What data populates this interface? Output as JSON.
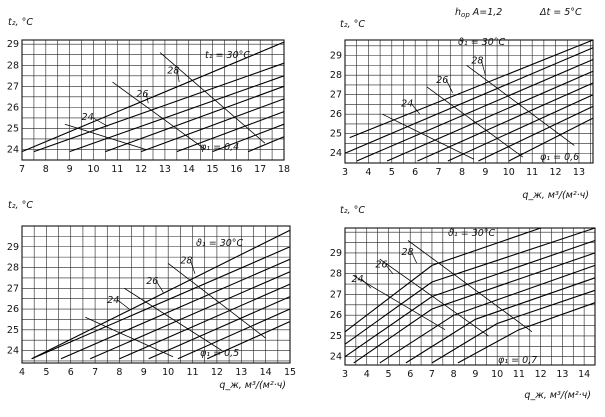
{
  "header": {
    "h_label": "h",
    "h_sub": "ор",
    "h_value": "A=1,2",
    "dt_label": "Δt = 5°C"
  },
  "chart_data": [
    {
      "id": "p1",
      "type": "line",
      "xlim": [
        7,
        18
      ],
      "ylim": [
        23.5,
        29.2
      ],
      "xticks": [
        "7",
        "8",
        "9",
        "10",
        "11",
        "12",
        "13",
        "14",
        "15",
        "16",
        "17",
        "18"
      ],
      "yticks": [
        "24",
        "25",
        "26",
        "27",
        "28",
        "29"
      ],
      "ylabel": "t₂, °C",
      "xlabel": "",
      "grid": true,
      "t_line_label": "t₁ = 30°C",
      "phi_label": "φ₁ = 0,4",
      "t1_lines": [
        {
          "name": "24",
          "points": [
            [
              7.5,
              23.9
            ],
            [
              18,
              28.1
            ]
          ]
        },
        {
          "name": "26",
          "points": [
            [
              9.0,
              23.9
            ],
            [
              18,
              27.5
            ]
          ]
        },
        {
          "name": "28",
          "points": [
            [
              10.5,
              23.9
            ],
            [
              18,
              27.0
            ]
          ]
        },
        {
          "name": "30",
          "points": [
            [
              12.0,
              23.9
            ],
            [
              18,
              26.4
            ]
          ]
        },
        {
          "name": "",
          "points": [
            [
              13.5,
              23.9
            ],
            [
              18,
              25.8
            ]
          ]
        },
        {
          "name": "",
          "points": [
            [
              15.0,
              23.9
            ],
            [
              18,
              25.2
            ]
          ]
        },
        {
          "name": "",
          "points": [
            [
              16.5,
              23.9
            ],
            [
              18,
              24.6
            ]
          ]
        }
      ],
      "top_line": {
        "points": [
          [
            7.0,
            23.9
          ],
          [
            18,
            29.1
          ]
        ]
      },
      "iso_lines": [
        {
          "points": [
            [
              8.8,
              25.2
            ],
            [
              12.2,
              24.0
            ]
          ]
        },
        {
          "points": [
            [
              10.8,
              27.2
            ],
            [
              14.7,
              24.0
            ]
          ]
        },
        {
          "points": [
            [
              12.8,
              28.6
            ],
            [
              17.2,
              24.3
            ]
          ]
        }
      ],
      "labels": [
        {
          "text": "24",
          "at": [
            9.5,
            25.4
          ],
          "to": [
            10.6,
            25.1
          ]
        },
        {
          "text": "26",
          "at": [
            11.8,
            26.5
          ],
          "to": [
            12.3,
            26.2
          ]
        },
        {
          "text": "28",
          "at": [
            13.1,
            27.6
          ],
          "to": [
            13.6,
            27.2
          ]
        }
      ]
    },
    {
      "id": "p2",
      "type": "line",
      "xlim": [
        3,
        13.6
      ],
      "ylim": [
        23.5,
        29.8
      ],
      "xticks": [
        "3",
        "4",
        "5",
        "6",
        "7",
        "8",
        "9",
        "10",
        "11",
        "12",
        "13"
      ],
      "yticks": [
        "24",
        "25",
        "26",
        "27",
        "28",
        "29"
      ],
      "ylabel": "t₂, °C",
      "xlabel": "q_ж, м³/(м²·ч)",
      "grid": true,
      "t_line_label": "ϑ₁ = 30°C",
      "phi_label": "φ₁ = 0,6",
      "t1_lines": [
        {
          "points": [
            [
              3.0,
              24.0
            ],
            [
              13.6,
              29.4
            ]
          ]
        },
        {
          "points": [
            [
              3.5,
              23.6
            ],
            [
              13.6,
              28.8
            ]
          ]
        },
        {
          "points": [
            [
              4.8,
              23.6
            ],
            [
              13.6,
              28.2
            ]
          ]
        },
        {
          "points": [
            [
              6.1,
              23.6
            ],
            [
              13.6,
              27.6
            ]
          ]
        },
        {
          "points": [
            [
              7.4,
              23.6
            ],
            [
              13.6,
              27.0
            ]
          ]
        },
        {
          "points": [
            [
              8.7,
              23.6
            ],
            [
              13.6,
              26.4
            ]
          ]
        },
        {
          "points": [
            [
              10.0,
              23.6
            ],
            [
              13.6,
              25.8
            ]
          ]
        }
      ],
      "top_line": {
        "points": [
          [
            3.2,
            24.8
          ],
          [
            13.6,
            29.8
          ]
        ]
      },
      "iso_lines": [
        {
          "points": [
            [
              4.6,
              26.0
            ],
            [
              8.5,
              23.7
            ]
          ]
        },
        {
          "points": [
            [
              6.5,
              27.4
            ],
            [
              10.6,
              23.8
            ]
          ]
        },
        {
          "points": [
            [
              8.2,
              28.5
            ],
            [
              12.8,
              24.4
            ]
          ]
        }
      ],
      "labels": [
        {
          "text": "24",
          "at": [
            5.4,
            26.4
          ],
          "to": [
            6.2,
            26.0
          ]
        },
        {
          "text": "26",
          "at": [
            6.9,
            27.6
          ],
          "to": [
            7.6,
            27.1
          ]
        },
        {
          "text": "28",
          "at": [
            8.4,
            28.6
          ],
          "to": [
            9.0,
            28.0
          ]
        }
      ]
    },
    {
      "id": "p3",
      "type": "line",
      "xlim": [
        4,
        15
      ],
      "ylim": [
        23.4,
        30.0
      ],
      "xticks": [
        "4",
        "5",
        "6",
        "7",
        "8",
        "9",
        "10",
        "11",
        "12",
        "13",
        "14",
        "15"
      ],
      "yticks": [
        "24",
        "25",
        "26",
        "27",
        "28",
        "29"
      ],
      "ylabel": "t₂, °C",
      "xlabel": "q_ж, м³/(м²·ч)",
      "grid": true,
      "t_line_label": "ϑ₁ = 30°C",
      "phi_label": "φ₁ = 0,5",
      "t1_lines": [
        {
          "points": [
            [
              4.4,
              23.6
            ],
            [
              15,
              29.0
            ]
          ]
        },
        {
          "points": [
            [
              5.6,
              23.6
            ],
            [
              15,
              28.4
            ]
          ]
        },
        {
          "points": [
            [
              6.8,
              23.6
            ],
            [
              15,
              27.8
            ]
          ]
        },
        {
          "points": [
            [
              8.0,
              23.6
            ],
            [
              15,
              27.2
            ]
          ]
        },
        {
          "points": [
            [
              9.2,
              23.6
            ],
            [
              15,
              26.6
            ]
          ]
        },
        {
          "points": [
            [
              10.4,
              23.6
            ],
            [
              15,
              26.0
            ]
          ]
        },
        {
          "points": [
            [
              11.6,
              23.6
            ],
            [
              15,
              25.4
            ]
          ]
        }
      ],
      "top_line": {
        "points": [
          [
            4.4,
            23.6
          ],
          [
            15,
            29.8
          ]
        ]
      },
      "iso_lines": [
        {
          "points": [
            [
              6.6,
              25.6
            ],
            [
              10.2,
              23.7
            ]
          ]
        },
        {
          "points": [
            [
              8.2,
              27.0
            ],
            [
              12.2,
              24.0
            ]
          ]
        },
        {
          "points": [
            [
              10.0,
              28.2
            ],
            [
              14.0,
              24.6
            ]
          ]
        }
      ],
      "labels": [
        {
          "text": "24",
          "at": [
            7.5,
            26.3
          ],
          "to": [
            8.4,
            26.0
          ]
        },
        {
          "text": "26",
          "at": [
            9.1,
            27.2
          ],
          "to": [
            9.8,
            26.8
          ]
        },
        {
          "text": "28",
          "at": [
            10.5,
            28.2
          ],
          "to": [
            11.1,
            27.7
          ]
        }
      ]
    },
    {
      "id": "p4",
      "type": "line",
      "xlim": [
        3,
        14.5
      ],
      "ylim": [
        23.6,
        30.2
      ],
      "xticks": [
        "3",
        "4",
        "5",
        "6",
        "7",
        "8",
        "9",
        "10",
        "11",
        "12",
        "13",
        "14"
      ],
      "yticks": [
        "24",
        "25",
        "26",
        "27",
        "28",
        "29"
      ],
      "ylabel": "t₂, °C",
      "xlabel": "q_ж, м³/(м²·ч)",
      "grid": true,
      "t_line_label": "ϑ₁ = 30°C",
      "phi_label": "φ₁ = 0,7",
      "t1_lines": [
        {
          "points": [
            [
              3.0,
              24.6
            ],
            [
              7.0,
              27.6
            ],
            [
              14.5,
              30.2
            ]
          ]
        },
        {
          "points": [
            [
              3.0,
              24.0
            ],
            [
              7.0,
              26.9
            ],
            [
              14.5,
              29.6
            ]
          ]
        },
        {
          "points": [
            [
              3.4,
              23.7
            ],
            [
              7.0,
              26.3
            ],
            [
              14.5,
              29.0
            ]
          ]
        },
        {
          "points": [
            [
              4.6,
              23.7
            ],
            [
              8.0,
              26.0
            ],
            [
              14.5,
              28.4
            ]
          ]
        },
        {
          "points": [
            [
              5.8,
              23.7
            ],
            [
              9.0,
              25.8
            ],
            [
              14.5,
              27.8
            ]
          ]
        },
        {
          "points": [
            [
              7.0,
              23.7
            ],
            [
              10.0,
              25.6
            ],
            [
              14.5,
              27.2
            ]
          ]
        },
        {
          "points": [
            [
              8.2,
              23.7
            ],
            [
              11.0,
              25.3
            ],
            [
              14.5,
              26.6
            ]
          ]
        }
      ],
      "top_line": {
        "points": [
          [
            3.0,
            25.2
          ],
          [
            7.0,
            28.4
          ],
          [
            12.0,
            30.2
          ]
        ]
      },
      "iso_lines": [
        {
          "points": [
            [
              3.4,
              27.9
            ],
            [
              7.6,
              25.3
            ]
          ]
        },
        {
          "points": [
            [
              4.6,
              28.7
            ],
            [
              9.6,
              25.0
            ]
          ]
        },
        {
          "points": [
            [
              5.9,
              29.6
            ],
            [
              11.6,
              25.2
            ]
          ]
        }
      ],
      "labels": [
        {
          "text": "24",
          "at": [
            3.3,
            27.6
          ],
          "to": [
            4.2,
            27.3
          ]
        },
        {
          "text": "26",
          "at": [
            4.4,
            28.3
          ],
          "to": [
            5.2,
            28.0
          ]
        },
        {
          "text": "28",
          "at": [
            5.6,
            28.9
          ],
          "to": [
            6.3,
            28.5
          ]
        }
      ]
    }
  ]
}
